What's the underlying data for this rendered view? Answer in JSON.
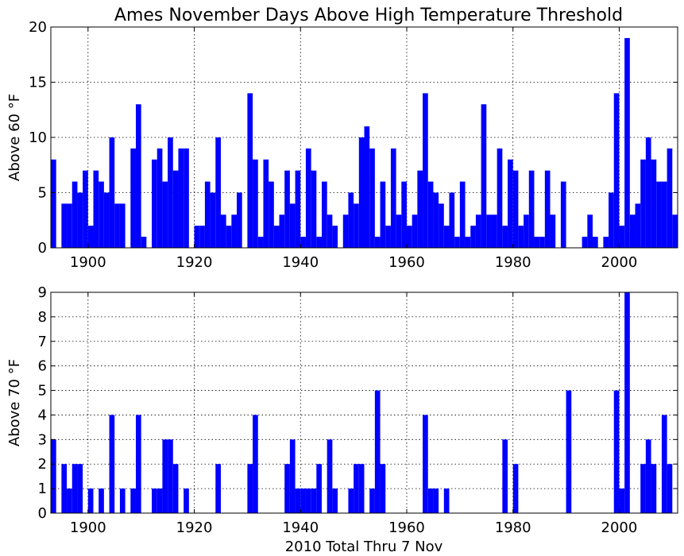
{
  "chart_data": {
    "type": "bar",
    "title": "Ames November Days Above High Temperature Threshold",
    "xlabel": "2010 Total Thru 7 Nov",
    "xlim": [
      1893,
      2011
    ],
    "xticks": [
      1900,
      1920,
      1940,
      1960,
      1980,
      2000
    ],
    "grid": true,
    "series": [
      {
        "name": "Above 60 °F",
        "ylabel": "Above 60 °F",
        "ylim": [
          0,
          20
        ],
        "yticks": [
          0,
          5,
          10,
          15,
          20
        ],
        "years": [
          1893,
          1894,
          1895,
          1896,
          1897,
          1898,
          1899,
          1900,
          1901,
          1902,
          1903,
          1904,
          1905,
          1906,
          1907,
          1908,
          1909,
          1910,
          1911,
          1912,
          1913,
          1914,
          1915,
          1916,
          1917,
          1918,
          1919,
          1920,
          1921,
          1922,
          1923,
          1924,
          1925,
          1926,
          1927,
          1928,
          1929,
          1930,
          1931,
          1932,
          1933,
          1934,
          1935,
          1936,
          1937,
          1938,
          1939,
          1940,
          1941,
          1942,
          1943,
          1944,
          1945,
          1946,
          1947,
          1948,
          1949,
          1950,
          1951,
          1952,
          1953,
          1954,
          1955,
          1956,
          1957,
          1958,
          1959,
          1960,
          1961,
          1962,
          1963,
          1964,
          1965,
          1966,
          1967,
          1968,
          1969,
          1970,
          1971,
          1972,
          1973,
          1974,
          1975,
          1976,
          1977,
          1978,
          1979,
          1980,
          1981,
          1982,
          1983,
          1984,
          1985,
          1986,
          1987,
          1988,
          1989,
          1990,
          1991,
          1992,
          1993,
          1994,
          1995,
          1996,
          1997,
          1998,
          1999,
          2000,
          2001,
          2002,
          2003,
          2004,
          2005,
          2006,
          2007,
          2008,
          2009,
          2010
        ],
        "values": [
          8,
          0,
          4,
          4,
          6,
          5,
          7,
          2,
          7,
          6,
          5,
          10,
          4,
          4,
          0,
          9,
          13,
          1,
          0,
          8,
          9,
          6,
          10,
          7,
          9,
          9,
          0,
          2,
          2,
          6,
          5,
          10,
          3,
          2,
          3,
          5,
          0,
          14,
          8,
          1,
          8,
          6,
          2,
          3,
          7,
          4,
          7,
          1,
          9,
          7,
          1,
          6,
          3,
          2,
          0,
          3,
          5,
          4,
          10,
          11,
          9,
          1,
          6,
          2,
          9,
          3,
          6,
          2,
          3,
          7,
          14,
          6,
          5,
          4,
          2,
          5,
          1,
          6,
          1,
          2,
          3,
          13,
          3,
          3,
          9,
          2,
          8,
          7,
          2,
          3,
          7,
          1,
          1,
          7,
          3,
          0,
          6,
          0,
          0,
          0,
          1,
          3,
          1,
          0,
          1,
          5,
          14,
          2,
          19,
          3,
          4,
          8,
          10,
          8,
          6,
          6,
          9,
          3
        ]
      },
      {
        "name": "Above 70 °F",
        "ylabel": "Above 70 °F",
        "ylim": [
          0,
          9
        ],
        "yticks": [
          0,
          1,
          2,
          3,
          4,
          5,
          6,
          7,
          8,
          9
        ],
        "years": [
          1893,
          1894,
          1895,
          1896,
          1897,
          1898,
          1899,
          1900,
          1901,
          1902,
          1903,
          1904,
          1905,
          1906,
          1907,
          1908,
          1909,
          1910,
          1911,
          1912,
          1913,
          1914,
          1915,
          1916,
          1917,
          1918,
          1919,
          1920,
          1921,
          1922,
          1923,
          1924,
          1925,
          1926,
          1927,
          1928,
          1929,
          1930,
          1931,
          1932,
          1933,
          1934,
          1935,
          1936,
          1937,
          1938,
          1939,
          1940,
          1941,
          1942,
          1943,
          1944,
          1945,
          1946,
          1947,
          1948,
          1949,
          1950,
          1951,
          1952,
          1953,
          1954,
          1955,
          1956,
          1957,
          1958,
          1959,
          1960,
          1961,
          1962,
          1963,
          1964,
          1965,
          1966,
          1967,
          1968,
          1969,
          1970,
          1971,
          1972,
          1973,
          1974,
          1975,
          1976,
          1977,
          1978,
          1979,
          1980,
          1981,
          1982,
          1983,
          1984,
          1985,
          1986,
          1987,
          1988,
          1989,
          1990,
          1991,
          1992,
          1993,
          1994,
          1995,
          1996,
          1997,
          1998,
          1999,
          2000,
          2001,
          2002,
          2003,
          2004,
          2005,
          2006,
          2007,
          2008,
          2009,
          2010
        ],
        "values": [
          3,
          0,
          2,
          1,
          2,
          2,
          0,
          1,
          0,
          1,
          0,
          4,
          0,
          1,
          0,
          1,
          4,
          0,
          0,
          1,
          1,
          3,
          3,
          2,
          0,
          1,
          0,
          0,
          0,
          0,
          0,
          2,
          0,
          0,
          0,
          0,
          0,
          2,
          4,
          0,
          0,
          0,
          0,
          0,
          2,
          3,
          1,
          1,
          1,
          1,
          2,
          0,
          3,
          1,
          0,
          0,
          1,
          2,
          2,
          0,
          1,
          5,
          2,
          0,
          0,
          0,
          0,
          0,
          0,
          0,
          4,
          1,
          1,
          0,
          1,
          0,
          0,
          0,
          0,
          0,
          0,
          0,
          0,
          0,
          0,
          3,
          0,
          2,
          0,
          0,
          0,
          0,
          0,
          0,
          0,
          0,
          0,
          5,
          0,
          0,
          0,
          0,
          0,
          0,
          0,
          0,
          5,
          1,
          9,
          0,
          0,
          2,
          3,
          2,
          0,
          4,
          2,
          0
        ]
      }
    ]
  }
}
